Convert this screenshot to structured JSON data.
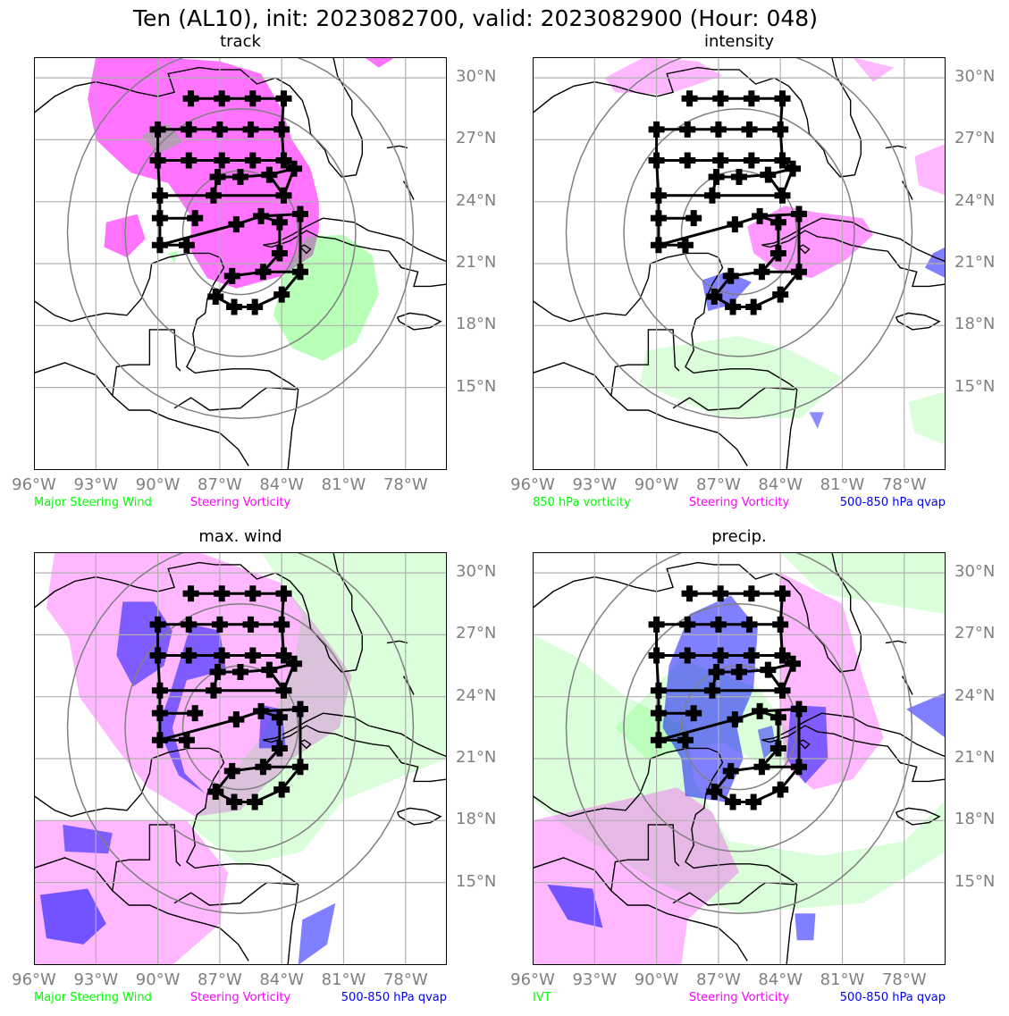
{
  "title": "Ten (AL10), init: 2023082700, valid: 2023082900 (Hour: 048)",
  "x_tick_labels": [
    "96°W",
    "93°W",
    "90°W",
    "87°W",
    "84°W",
    "81°W",
    "78°W"
  ],
  "y_tick_labels": [
    "30°N",
    "27°N",
    "24°N",
    "21°N",
    "18°N",
    "15°N"
  ],
  "colors": {
    "steering_wind": "#00ff00",
    "steering_vorticity": "#ff00ff",
    "qvap": "#0000ff",
    "ivt": "#00ff00",
    "vort850": "#00ff00",
    "gridline": "#b0b0b0",
    "range_ring": "#808080",
    "track": "#000000"
  },
  "panels": [
    {
      "title": "track",
      "legend": [
        {
          "text": "Major Steering Wind",
          "color": "#00ff00"
        },
        {
          "text": "Steering Vorticity",
          "color": "#ff00ff"
        }
      ]
    },
    {
      "title": "intensity",
      "legend": [
        {
          "text": "850 hPa vorticity",
          "color": "#00ff00"
        },
        {
          "text": "Steering Vorticity",
          "color": "#ff00ff"
        },
        {
          "text": "500-850 hPa qvap",
          "color": "#0000ff"
        }
      ]
    },
    {
      "title": "max. wind",
      "legend": [
        {
          "text": "Major Steering Wind",
          "color": "#00ff00"
        },
        {
          "text": "Steering Vorticity",
          "color": "#ff00ff"
        },
        {
          "text": "500-850 hPa qvap",
          "color": "#0000ff"
        }
      ]
    },
    {
      "title": "precip.",
      "legend": [
        {
          "text": "IVT",
          "color": "#00ff00"
        },
        {
          "text": "Steering Vorticity",
          "color": "#ff00ff"
        },
        {
          "text": "500-850 hPa qvap",
          "color": "#0000ff"
        }
      ]
    }
  ],
  "chart_data": {
    "type": "map",
    "x_axis": {
      "label": "longitude",
      "ticks": [
        -96,
        -93,
        -90,
        -87,
        -84,
        -81,
        -78
      ],
      "range": [
        -96,
        -76
      ]
    },
    "y_axis": {
      "label": "latitude",
      "ticks": [
        30,
        27,
        24,
        21,
        18,
        15
      ],
      "range": [
        11,
        31
      ]
    },
    "track_points": [
      [
        -88.4,
        29.0
      ],
      [
        -86.9,
        29.0
      ],
      [
        -85.4,
        29.0
      ],
      [
        -83.9,
        29.0
      ],
      [
        -90.0,
        27.5
      ],
      [
        -88.5,
        27.5
      ],
      [
        -87.0,
        27.5
      ],
      [
        -85.5,
        27.5
      ],
      [
        -84.0,
        27.5
      ],
      [
        -90.0,
        26.0
      ],
      [
        -88.5,
        26.0
      ],
      [
        -86.9,
        26.0
      ],
      [
        -85.4,
        26.0
      ],
      [
        -83.9,
        26.0
      ],
      [
        -87.1,
        25.2
      ],
      [
        -86.0,
        25.2
      ],
      [
        -84.6,
        25.3
      ],
      [
        -83.4,
        25.6
      ],
      [
        -89.9,
        24.3
      ],
      [
        -87.3,
        24.3
      ],
      [
        -83.9,
        24.3
      ],
      [
        -89.9,
        23.2
      ],
      [
        -88.2,
        23.2
      ],
      [
        -86.2,
        22.9
      ],
      [
        -85.0,
        23.3
      ],
      [
        -84.1,
        23.0
      ],
      [
        -83.1,
        23.4
      ],
      [
        -89.9,
        21.9
      ],
      [
        -88.6,
        21.9
      ],
      [
        -84.1,
        21.5
      ],
      [
        -86.4,
        20.4
      ],
      [
        -84.9,
        20.6
      ],
      [
        -83.1,
        20.6
      ],
      [
        -87.2,
        19.4
      ],
      [
        -84.0,
        19.5
      ],
      [
        -86.3,
        18.9
      ],
      [
        -85.3,
        18.9
      ]
    ],
    "range_rings_deg": [
      3,
      6,
      9
    ],
    "ring_center": [
      -86,
      22.5
    ]
  }
}
